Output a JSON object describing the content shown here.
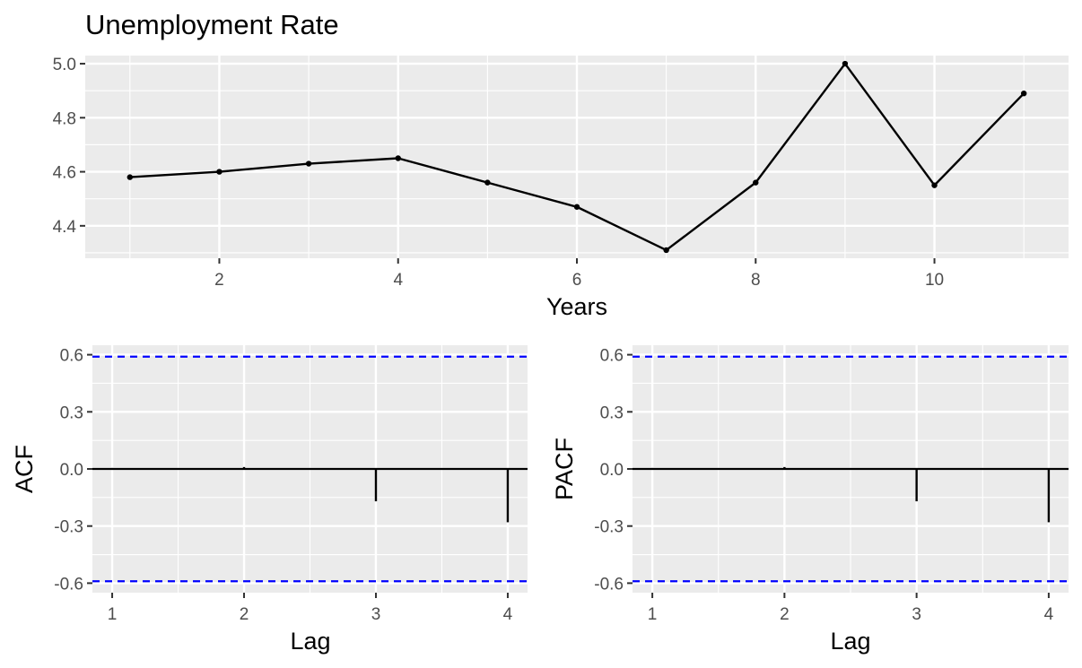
{
  "colors": {
    "panel": "#ebebeb",
    "grid": "#ffffff",
    "series": "#000000",
    "conf_band": "#0000ff",
    "tick_text": "#4d4d4d"
  },
  "chart_data": [
    {
      "type": "line",
      "title": "Unemployment Rate",
      "xlabel": "Years",
      "ylabel": "",
      "x": [
        1,
        2,
        3,
        4,
        5,
        6,
        7,
        8,
        9,
        10,
        11
      ],
      "values": [
        4.58,
        4.6,
        4.63,
        4.65,
        4.56,
        4.47,
        4.31,
        4.56,
        5.0,
        4.55,
        4.89
      ],
      "xlim": [
        0.5,
        11.5
      ],
      "ylim": [
        4.28,
        5.03
      ],
      "x_ticks": [
        2,
        4,
        6,
        8,
        10
      ],
      "x_tick_labels": [
        "2",
        "4",
        "6",
        "8",
        "10"
      ],
      "y_ticks": [
        4.4,
        4.6,
        4.8,
        5.0
      ],
      "y_tick_labels": [
        "4.4",
        "4.6",
        "4.8",
        "5.0"
      ],
      "markers": true,
      "grid": true
    },
    {
      "type": "bar",
      "title": "",
      "xlabel": "Lag",
      "ylabel": "ACF",
      "x": [
        1,
        2,
        3,
        4
      ],
      "values": [
        0.005,
        0.01,
        -0.17,
        -0.28
      ],
      "conf_limit": 0.59,
      "xlim": [
        0.85,
        4.15
      ],
      "ylim": [
        -0.65,
        0.65
      ],
      "x_ticks": [
        1,
        2,
        3,
        4
      ],
      "x_tick_labels": [
        "1",
        "2",
        "3",
        "4"
      ],
      "y_ticks": [
        0.6,
        0.3,
        0.0,
        -0.3,
        -0.6
      ],
      "y_tick_labels": [
        "0.6",
        "0.3",
        "0.0",
        "-0.3",
        "-0.6"
      ],
      "grid": true
    },
    {
      "type": "bar",
      "title": "",
      "xlabel": "Lag",
      "ylabel": "PACF",
      "x": [
        1,
        2,
        3,
        4
      ],
      "values": [
        0.005,
        0.01,
        -0.17,
        -0.28
      ],
      "conf_limit": 0.59,
      "xlim": [
        0.85,
        4.15
      ],
      "ylim": [
        -0.65,
        0.65
      ],
      "x_ticks": [
        1,
        2,
        3,
        4
      ],
      "x_tick_labels": [
        "1",
        "2",
        "3",
        "4"
      ],
      "y_ticks": [
        0.6,
        0.3,
        0.0,
        -0.3,
        -0.6
      ],
      "y_tick_labels": [
        "0.6",
        "0.3",
        "0.0",
        "-0.3",
        "-0.6"
      ],
      "grid": true
    }
  ]
}
